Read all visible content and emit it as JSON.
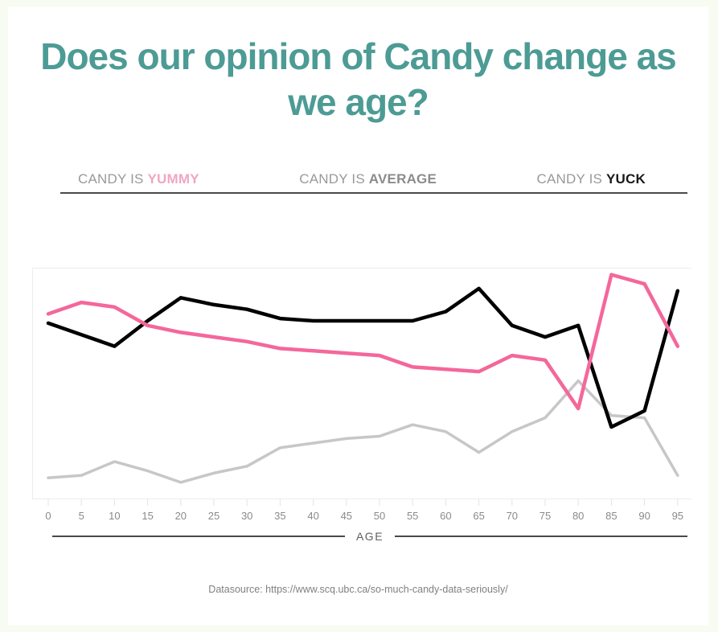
{
  "header": {
    "title_line1": "Does our opinion of Candy change as",
    "title_line2": "we age?"
  },
  "legend": {
    "prefix_color": "#999999",
    "items": [
      {
        "prefix": "CANDY IS ",
        "word": "YUMMY",
        "color": "#f0a6c3"
      },
      {
        "prefix": "CANDY IS ",
        "word": "AVERAGE",
        "color": "#8c8c8c"
      },
      {
        "prefix": "CANDY IS ",
        "word": "YUCK",
        "color": "#1a1a1a"
      }
    ]
  },
  "chart_data": {
    "type": "line",
    "x": [
      0,
      5,
      10,
      15,
      20,
      25,
      30,
      35,
      40,
      45,
      50,
      55,
      60,
      65,
      70,
      75,
      80,
      85,
      90,
      95
    ],
    "xlabel": "AGE",
    "ylabel": "",
    "ylim": [
      0,
      100
    ],
    "y_axis_ticks_visible": false,
    "grid": false,
    "legend_position": "top",
    "series": [
      {
        "name": "Candy is YUMMY",
        "color": "#f4679a",
        "stroke_width": 4.5,
        "z": 3,
        "values": [
          80,
          85,
          83,
          75,
          72,
          70,
          68,
          65,
          64,
          63,
          62,
          57,
          56,
          55,
          62,
          60,
          39,
          97,
          93,
          66
        ]
      },
      {
        "name": "Candy is AVERAGE",
        "color": "#c7c7c7",
        "stroke_width": 3.5,
        "z": 1,
        "values": [
          9,
          10,
          16,
          12,
          7,
          11,
          14,
          22,
          24,
          26,
          27,
          32,
          29,
          20,
          29,
          35,
          51,
          36,
          35,
          10
        ]
      },
      {
        "name": "Candy is YUCK",
        "color": "#000000",
        "stroke_width": 4.5,
        "z": 2,
        "values": [
          76,
          71,
          66,
          77,
          87,
          84,
          82,
          78,
          77,
          77,
          77,
          77,
          81,
          91,
          75,
          70,
          75,
          31,
          38,
          90
        ]
      }
    ]
  },
  "axis": {
    "tick_label_color": "#8a8a8a",
    "tick_mark_color": "#e3e3e3",
    "plot_border_color": "#ececec",
    "age_label": "AGE"
  },
  "footer": {
    "datasource": "Datasource: https://www.scq.ubc.ca/so-much-candy-data-seriously/"
  },
  "colors": {
    "page_background": "#f8fbf2",
    "card_background": "#ffffff",
    "title": "#4d9b95",
    "divider": "#4a4a4a"
  }
}
